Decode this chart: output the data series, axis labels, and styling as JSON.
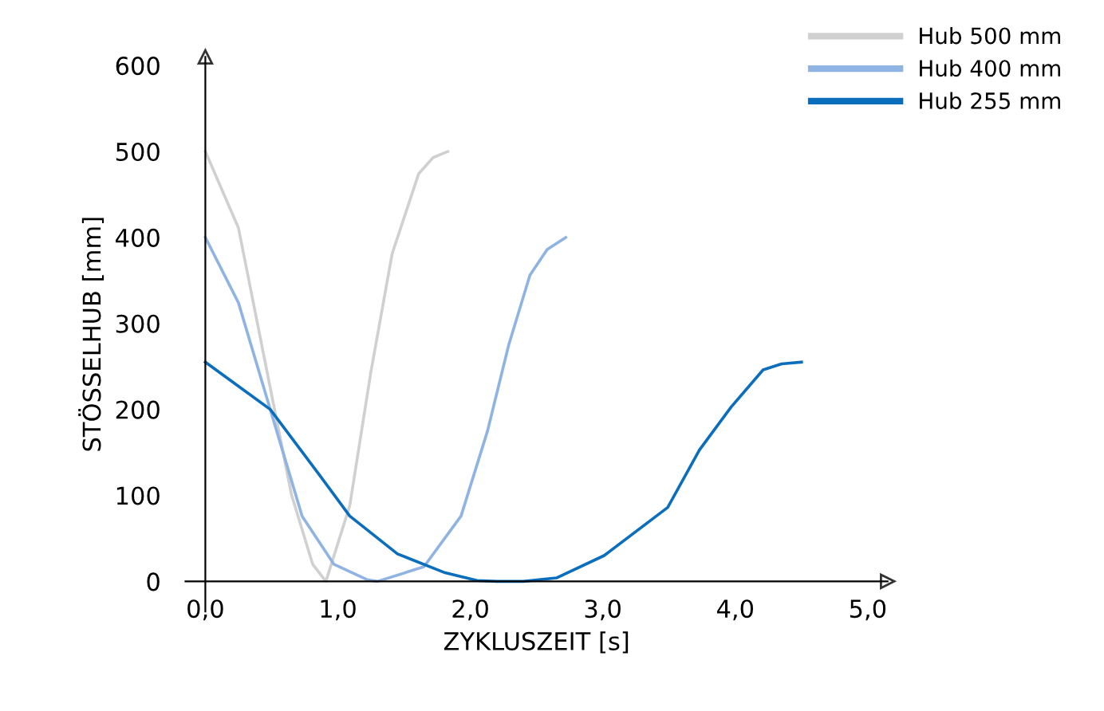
{
  "chart_data": {
    "type": "line",
    "xlabel": "ZYKLUSZEIT [s]",
    "ylabel": "STÖSSELHUB [mm]",
    "xlim": [
      -0.15,
      5.15
    ],
    "ylim": [
      -35,
      610
    ],
    "xticks": [
      {
        "value": 0,
        "label": "0,0"
      },
      {
        "value": 1,
        "label": "1,0"
      },
      {
        "value": 2,
        "label": "2,0"
      },
      {
        "value": 3,
        "label": "3,0"
      },
      {
        "value": 4,
        "label": "4,0"
      },
      {
        "value": 5,
        "label": "5,0"
      }
    ],
    "yticks": [
      0,
      100,
      200,
      300,
      400,
      500,
      600
    ],
    "grid": false,
    "legend": "top right",
    "line_style": "solid",
    "marker": "none",
    "series": [
      {
        "name": "Hub 500 mm",
        "color": "#d0d0d0",
        "x": [
          0,
          0.25,
          0.45,
          0.65,
          0.81,
          0.91,
          1.09,
          1.25,
          1.41,
          1.61,
          1.72,
          1.83
        ],
        "values": [
          500,
          411,
          256,
          101,
          20,
          0,
          88,
          244,
          381,
          474,
          493,
          500
        ]
      },
      {
        "name": "Hub 400 mm",
        "color": "#8fb4e3",
        "x": [
          0,
          0.25,
          0.49,
          0.73,
          0.97,
          1.22,
          1.3,
          1.65,
          1.93,
          2.13,
          2.29,
          2.45,
          2.58,
          2.72
        ],
        "values": [
          400,
          324,
          200,
          76,
          20,
          2,
          0,
          17,
          76,
          175,
          275,
          356,
          386,
          400
        ]
      },
      {
        "name": "Hub 255 mm",
        "color": "#0a6ebd",
        "x": [
          0,
          0.49,
          0.85,
          1.09,
          1.45,
          1.81,
          2.05,
          2.2,
          2.4,
          2.65,
          3.01,
          3.49,
          3.73,
          3.97,
          4.21,
          4.35,
          4.5
        ],
        "values": [
          255,
          200,
          126,
          76,
          32,
          10,
          1,
          0,
          0,
          4,
          30,
          86,
          153,
          203,
          246,
          253,
          255
        ]
      }
    ]
  }
}
